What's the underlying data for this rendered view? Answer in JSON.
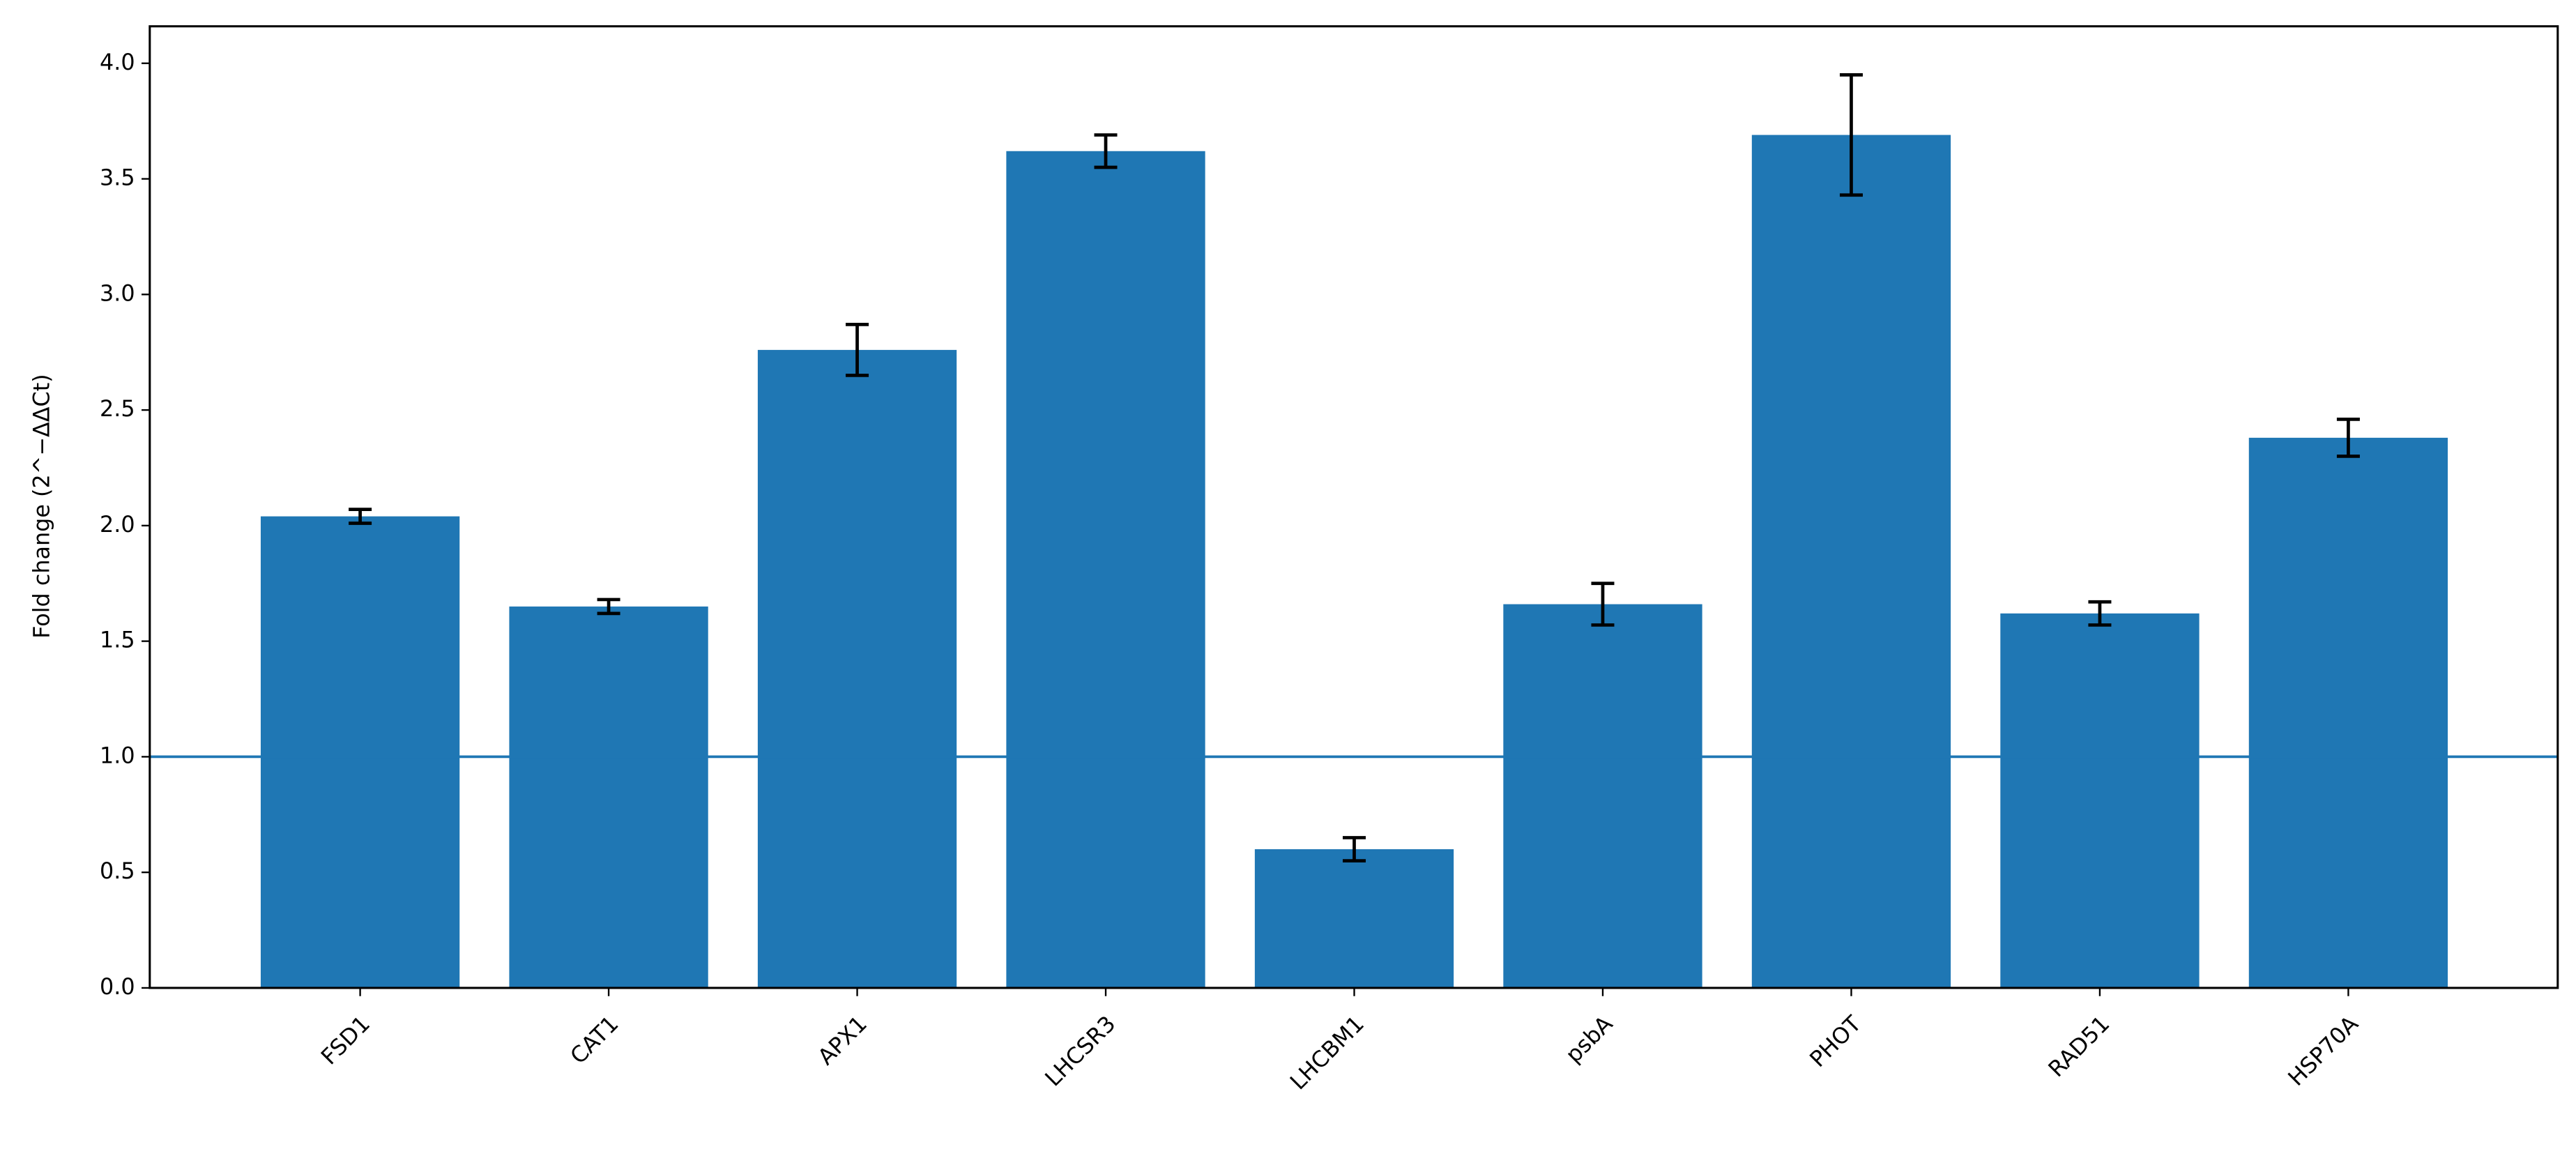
{
  "chart_data": {
    "type": "bar",
    "y_label": "Fold change (2^−ΔΔCt)",
    "categories": [
      "FSD1",
      "CAT1",
      "APX1",
      "LHCSR3",
      "LHCBM1",
      "psbA",
      "PHOT",
      "RAD51",
      "HSP70A"
    ],
    "values": [
      2.04,
      1.65,
      2.76,
      3.62,
      0.6,
      1.66,
      3.69,
      1.62,
      2.38
    ],
    "errors": [
      0.03,
      0.03,
      0.11,
      0.07,
      0.05,
      0.09,
      0.26,
      0.05,
      0.08
    ],
    "color": "#1f77b4",
    "reference_line": 1.0,
    "ylim": [
      0,
      4.16
    ],
    "yticks": [
      {
        "value": 0,
        "label": "0.0"
      },
      {
        "value": 0.5,
        "label": "0.5"
      },
      {
        "value": 1,
        "label": "1.0"
      },
      {
        "value": 1.5,
        "label": "1.5"
      },
      {
        "value": 2,
        "label": "2.0"
      },
      {
        "value": 2.5,
        "label": "2.5"
      },
      {
        "value": 3,
        "label": "3.0"
      },
      {
        "value": 3.5,
        "label": "3.5"
      },
      {
        "value": 4,
        "label": "4.0"
      }
    ]
  }
}
